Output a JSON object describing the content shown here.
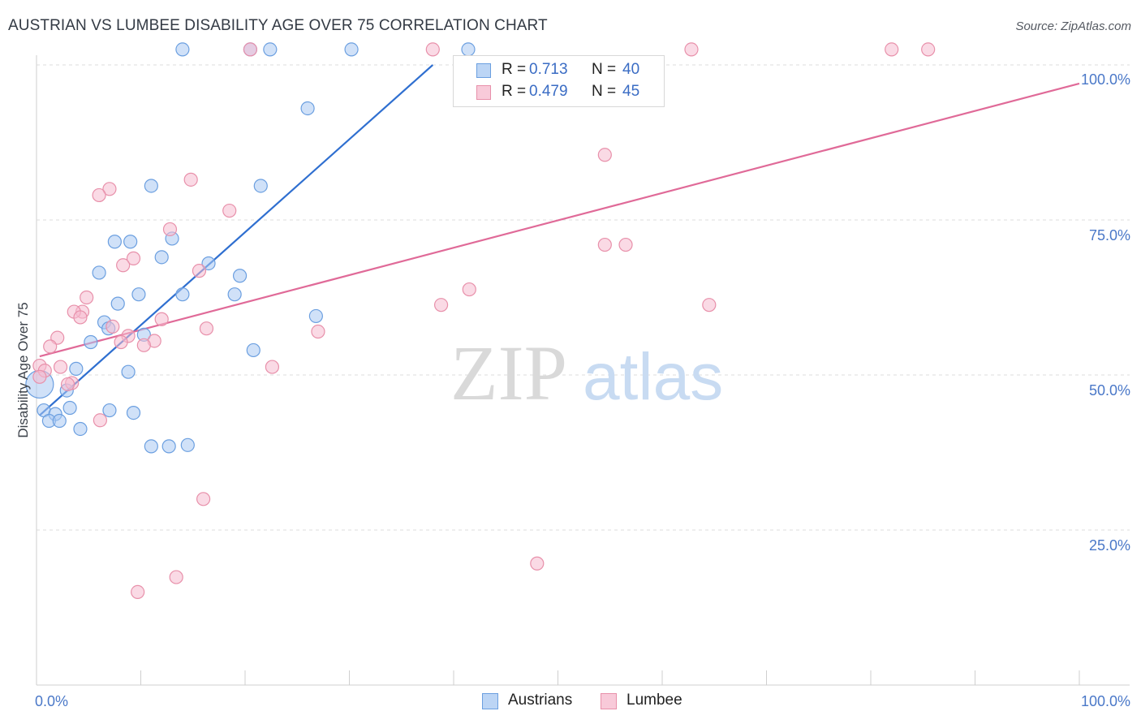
{
  "title": "AUSTRIAN VS LUMBEE DISABILITY AGE OVER 75 CORRELATION CHART",
  "source": "Source: ZipAtlas.com",
  "watermark": {
    "zip": "ZIP",
    "atlas": "atlas"
  },
  "legend_top": {
    "rows": [
      {
        "r_label": "R =",
        "r_value": "0.713",
        "n_label": "N =",
        "n_value": "40"
      },
      {
        "r_label": "R =",
        "r_value": "0.479",
        "n_label": "N =",
        "n_value": "45"
      }
    ]
  },
  "chart_data": {
    "type": "scatter",
    "title": "AUSTRIAN VS LUMBEE DISABILITY AGE OVER 75 CORRELATION CHART",
    "xlabel": "",
    "ylabel": "Disability Age Over 75",
    "xlim": [
      0,
      100
    ],
    "ylim": [
      0,
      105
    ],
    "x_tick_labels": [
      "0.0%",
      "100.0%"
    ],
    "y_ticks": [
      25,
      50,
      75,
      100
    ],
    "y_tick_labels": [
      "25.0%",
      "50.0%",
      "75.0%",
      "100.0%"
    ],
    "grid": true,
    "legend_position": "top-center",
    "series": [
      {
        "name": "Austrians",
        "color": "#6b9fe0",
        "fill": "#a9c8f2",
        "line_color": "#2f6fd0",
        "trend": [
          [
            0.3,
            43.5
          ],
          [
            38,
            100
          ]
        ],
        "points": [
          [
            14,
            102.5
          ],
          [
            20.5,
            102.5
          ],
          [
            22.4,
            102.5
          ],
          [
            30.2,
            102.5
          ],
          [
            41.4,
            102.5
          ],
          [
            26,
            93
          ],
          [
            11,
            80.5
          ],
          [
            21.5,
            80.5
          ],
          [
            7.5,
            71.5
          ],
          [
            9,
            71.5
          ],
          [
            13,
            72
          ],
          [
            12,
            69
          ],
          [
            16.5,
            68
          ],
          [
            6,
            66.5
          ],
          [
            19.5,
            66
          ],
          [
            14,
            63
          ],
          [
            9.8,
            63
          ],
          [
            19,
            63
          ],
          [
            7.8,
            61.5
          ],
          [
            26.8,
            59.5
          ],
          [
            6.5,
            58.5
          ],
          [
            6.9,
            57.5
          ],
          [
            10.3,
            56.5
          ],
          [
            5.2,
            55.3
          ],
          [
            20.8,
            54
          ],
          [
            3.8,
            51
          ],
          [
            8.8,
            50.5
          ],
          [
            2.9,
            47.5
          ],
          [
            0.3,
            48.5
          ],
          [
            0.7,
            44.3
          ],
          [
            3.2,
            44.7
          ],
          [
            7,
            44.3
          ],
          [
            1.8,
            43.7
          ],
          [
            9.3,
            43.9
          ],
          [
            1.2,
            42.6
          ],
          [
            2.2,
            42.6
          ],
          [
            4.2,
            41.3
          ],
          [
            11,
            38.5
          ],
          [
            12.7,
            38.5
          ],
          [
            14.5,
            38.7
          ]
        ]
      },
      {
        "name": "Lumbee",
        "color": "#e890aa",
        "fill": "#f6bcd0",
        "line_color": "#e06a98",
        "trend": [
          [
            0.3,
            53
          ],
          [
            100,
            97
          ]
        ],
        "points": [
          [
            20.5,
            102.5
          ],
          [
            38,
            102.5
          ],
          [
            62.8,
            102.5
          ],
          [
            82,
            102.5
          ],
          [
            85.5,
            102.5
          ],
          [
            54.5,
            85.5
          ],
          [
            14.8,
            81.5
          ],
          [
            7,
            80
          ],
          [
            6,
            79
          ],
          [
            18.5,
            76.5
          ],
          [
            12.8,
            73.5
          ],
          [
            54.5,
            71
          ],
          [
            56.5,
            71
          ],
          [
            9.3,
            68.8
          ],
          [
            8.3,
            67.7
          ],
          [
            15.6,
            66.8
          ],
          [
            41.5,
            63.8
          ],
          [
            4.8,
            62.5
          ],
          [
            38.8,
            61.3
          ],
          [
            64.5,
            61.3
          ],
          [
            4.4,
            60.2
          ],
          [
            3.6,
            60.2
          ],
          [
            4.2,
            59.3
          ],
          [
            12,
            59
          ],
          [
            7.3,
            57.8
          ],
          [
            16.3,
            57.5
          ],
          [
            27,
            57
          ],
          [
            2,
            56
          ],
          [
            8.8,
            56.3
          ],
          [
            11.3,
            55.5
          ],
          [
            8.1,
            55.3
          ],
          [
            10.3,
            54.8
          ],
          [
            1.3,
            54.6
          ],
          [
            0.3,
            51.5
          ],
          [
            2.3,
            51.3
          ],
          [
            22.6,
            51.3
          ],
          [
            0.8,
            50.7
          ],
          [
            3.4,
            48.7
          ],
          [
            0.3,
            49.7
          ],
          [
            3,
            48.5
          ],
          [
            6.1,
            42.7
          ],
          [
            16,
            30
          ],
          [
            48,
            19.6
          ],
          [
            13.4,
            17.4
          ],
          [
            9.7,
            15
          ]
        ]
      }
    ]
  },
  "legend_bottom": {
    "items": [
      "Austrians",
      "Lumbee"
    ]
  }
}
